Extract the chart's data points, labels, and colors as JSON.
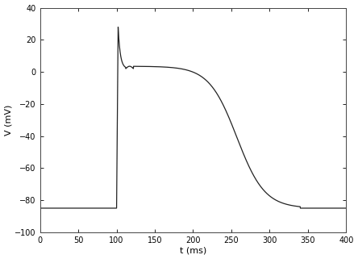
{
  "title": "",
  "xlabel": "t (ms)",
  "ylabel": "V (mV)",
  "xlim": [
    0,
    400
  ],
  "ylim": [
    -100,
    40
  ],
  "xticks": [
    0,
    50,
    100,
    150,
    200,
    250,
    300,
    350,
    400
  ],
  "yticks": [
    -100,
    -80,
    -60,
    -40,
    -20,
    0,
    20,
    40
  ],
  "line_color": "#222222",
  "line_width": 0.9,
  "bg_color": "#ffffff",
  "figsize": [
    4.44,
    3.21
  ],
  "dpi": 100,
  "resting_v": -85.0,
  "peak_v": 28.0,
  "notch_v": 2.0,
  "plateau_v": 3.5,
  "final_v": -85.0,
  "t_start": 100,
  "t_upstroke_end": 102.0,
  "t_notch": 112.0,
  "t_plateau_start": 122.0,
  "t_repol_mid": 250.0,
  "t_repol_end": 340.0
}
